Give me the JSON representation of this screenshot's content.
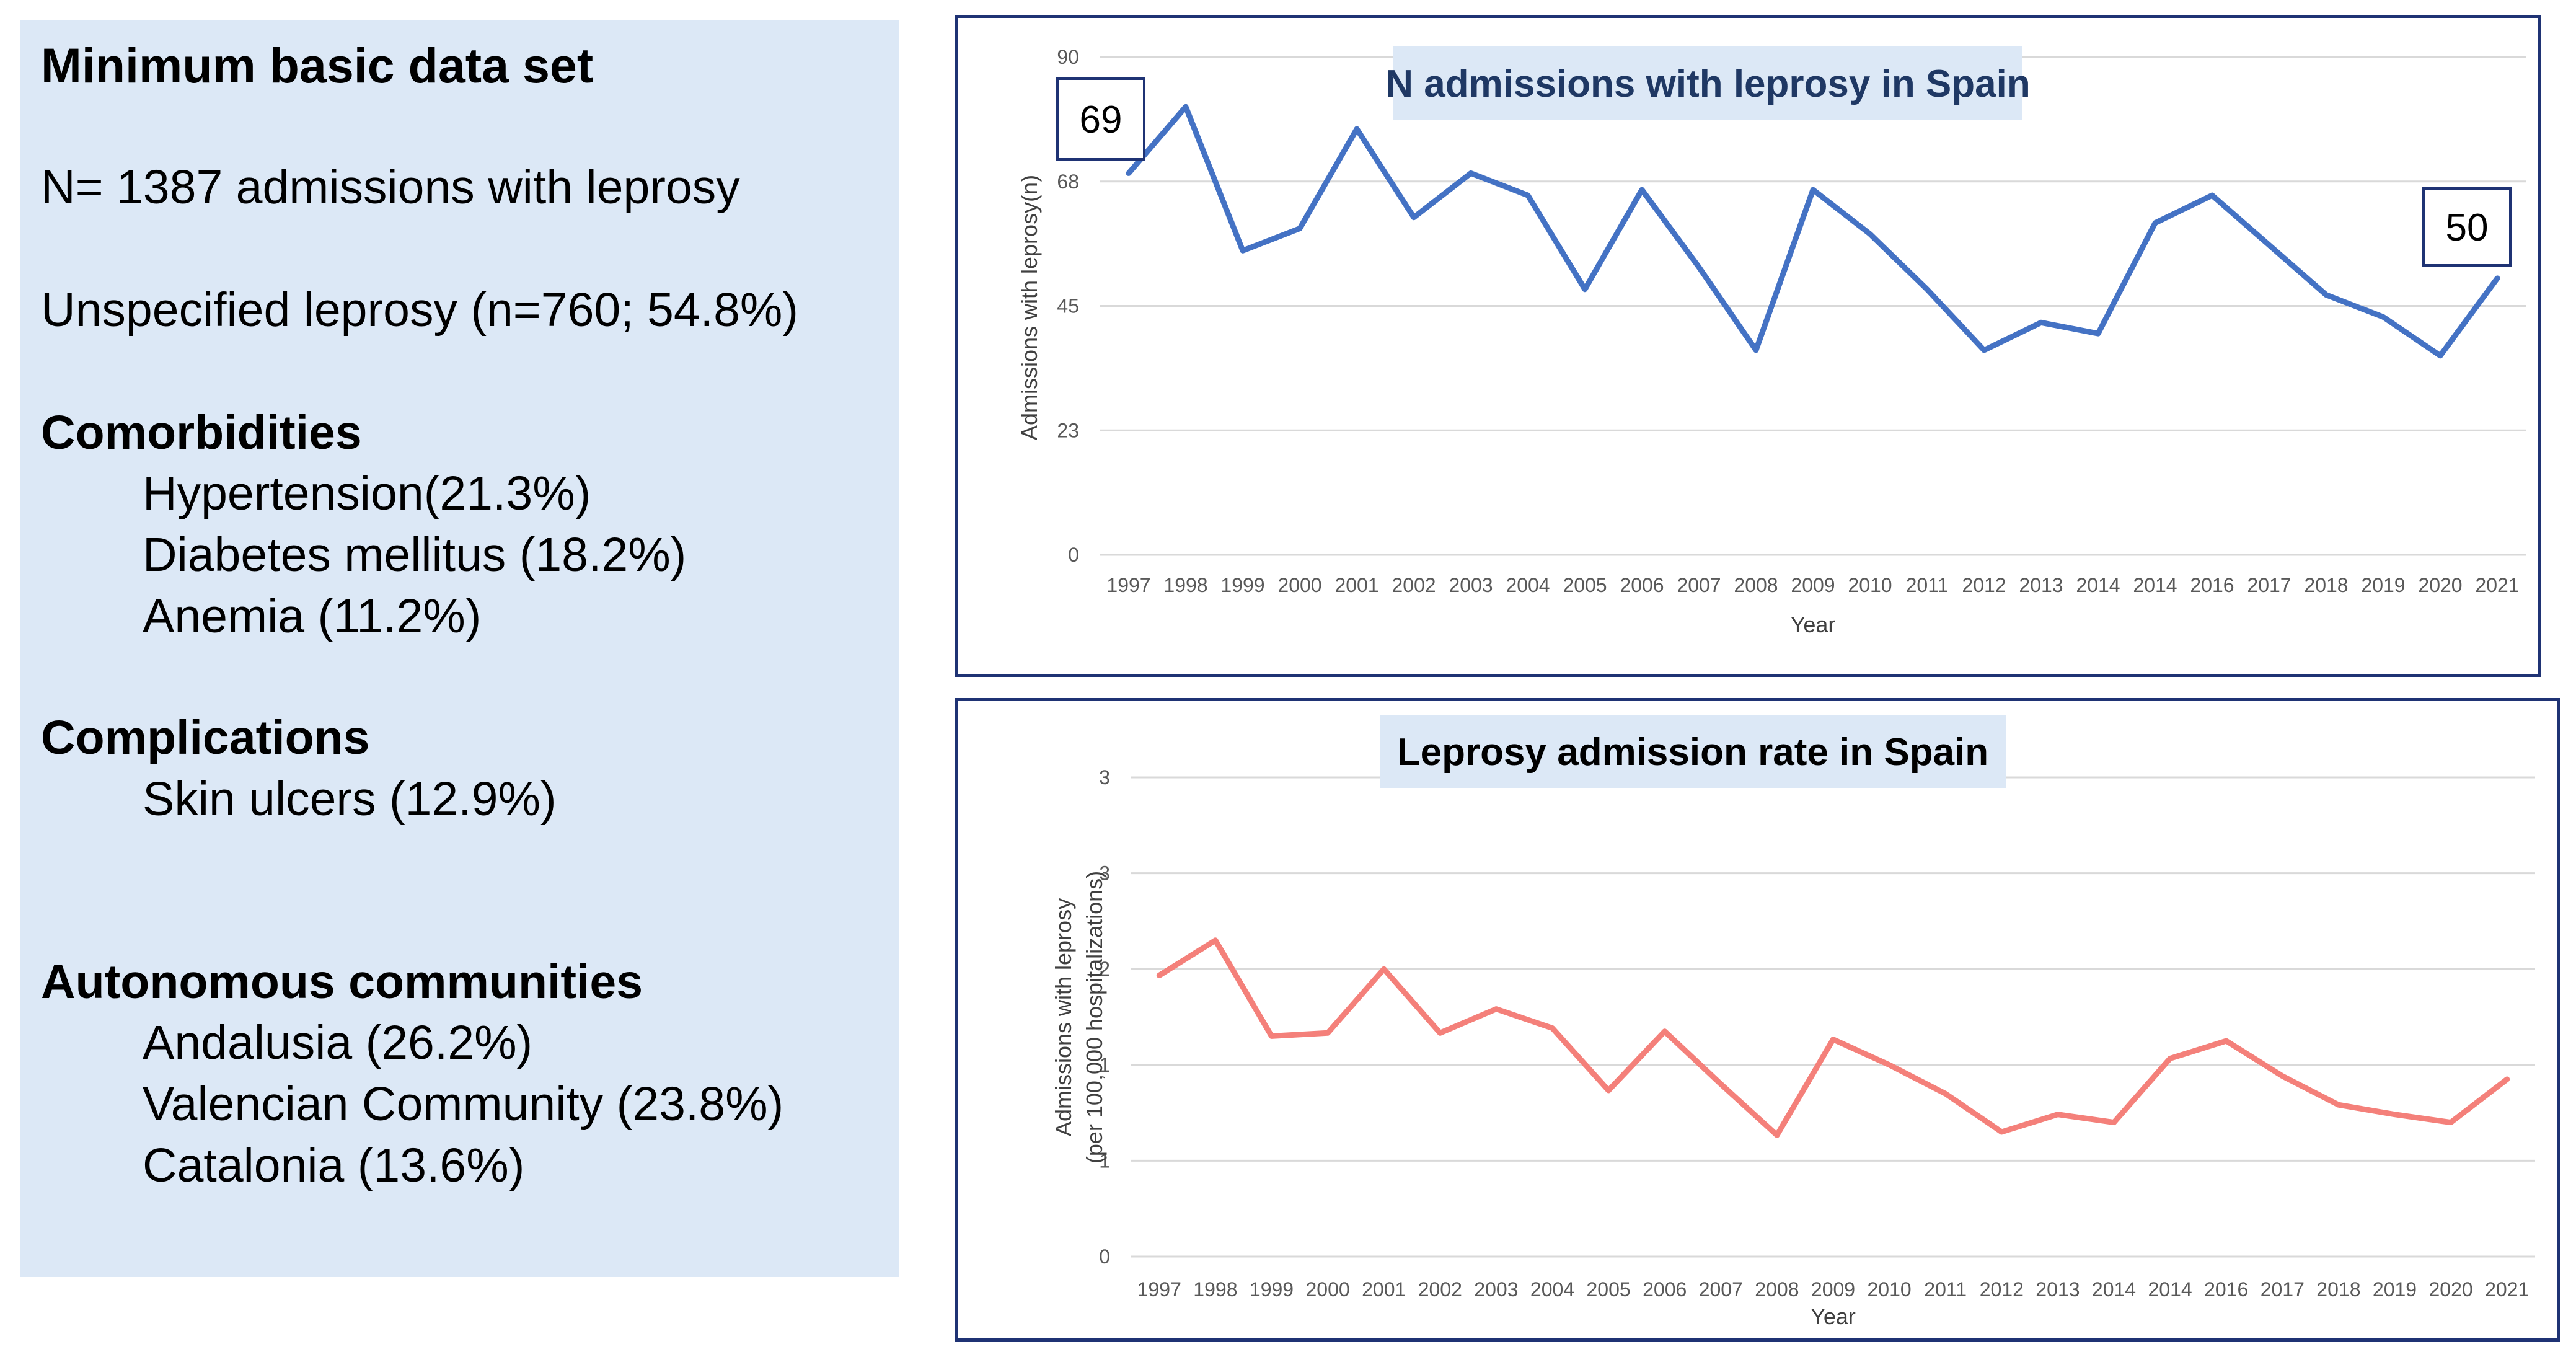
{
  "summary": {
    "title": "Minimum basic data set",
    "total": "N= 1387 admissions with leprosy",
    "unspecified": "Unspecified leprosy (n=760; 54.8%)",
    "comorbidities_heading": "Comorbidities",
    "comorbidities": [
      "Hypertension(21.3%)",
      "Diabetes mellitus (18.2%)",
      "Anemia (11.2%)"
    ],
    "complications_heading": "Complications",
    "complications": [
      "Skin ulcers (12.9%)"
    ],
    "communities_heading": "Autonomous communities",
    "communities": [
      "Andalusia (26.2%)",
      "Valencian Community (23.8%)",
      "Catalonia (13.6%)"
    ]
  },
  "colors": {
    "panel_bg": "#dce8f6",
    "chart1_line": "#4472c4",
    "chart2_line": "#f4807a",
    "chart1_title": "#1f3864",
    "title_bg": "#dce8f6",
    "frame": "#1f3374",
    "grid": "#d9d9d9"
  },
  "chart_data": [
    {
      "type": "line",
      "title": "N admissions with leprosy in Spain",
      "xlabel": "Year",
      "ylabel": "Admissions with leprosy(n)",
      "yticks": [
        "0",
        "23",
        "45",
        "68",
        "90"
      ],
      "ylim": [
        0,
        90
      ],
      "categories": [
        "1997",
        "1998",
        "1999",
        "2000",
        "2001",
        "2002",
        "2003",
        "2004",
        "2005",
        "2006",
        "2007",
        "2008",
        "2009",
        "2010",
        "2011",
        "2012",
        "2013",
        "2014",
        "2014",
        "2016",
        "2017",
        "2018",
        "2019",
        "2020",
        "2021"
      ],
      "values": [
        69,
        81,
        55,
        59,
        77,
        61,
        69,
        65,
        48,
        66,
        52,
        37,
        66,
        58,
        48,
        37,
        42,
        40,
        60,
        65,
        56,
        47,
        43,
        36,
        50
      ],
      "annotations": [
        {
          "index": 0,
          "label": "69"
        },
        {
          "index": 24,
          "label": "50"
        }
      ]
    },
    {
      "type": "line",
      "title": "Leprosy admission rate in Spain",
      "xlabel": "Year",
      "ylabel_lines": [
        "Admissions with leprosy",
        "(per  100,000 hospitalizations)"
      ],
      "yticks": [
        "0",
        "1",
        "1",
        "2",
        "3",
        "3"
      ],
      "ylim": [
        0,
        3
      ],
      "categories": [
        "1997",
        "1998",
        "1999",
        "2000",
        "2001",
        "2002",
        "2003",
        "2004",
        "2005",
        "2006",
        "2007",
        "2008",
        "2009",
        "2010",
        "2011",
        "2012",
        "2013",
        "2014",
        "2014",
        "2016",
        "2017",
        "2018",
        "2019",
        "2020",
        "2021"
      ],
      "values": [
        1.76,
        1.98,
        1.38,
        1.4,
        1.8,
        1.4,
        1.55,
        1.43,
        1.04,
        1.41,
        1.08,
        0.76,
        1.36,
        1.2,
        1.02,
        0.78,
        0.89,
        0.84,
        1.24,
        1.35,
        1.13,
        0.95,
        0.89,
        0.84,
        1.11
      ]
    }
  ]
}
